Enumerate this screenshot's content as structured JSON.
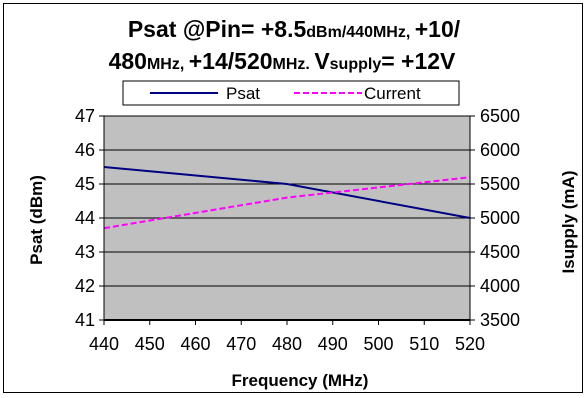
{
  "chart_data": {
    "type": "line",
    "title": {
      "line1": [
        {
          "t": "Psat @Pin= ",
          "size": "big"
        },
        {
          "t": "+8.5",
          "size": "big"
        },
        {
          "t": "dBm/440MHz, ",
          "size": "small"
        },
        {
          "t": "+10/",
          "size": "big"
        }
      ],
      "line2": [
        {
          "t": "480",
          "size": "big"
        },
        {
          "t": "MHz, ",
          "size": "small"
        },
        {
          "t": "+14/520",
          "size": "big"
        },
        {
          "t": "MHz.  ",
          "size": "small"
        },
        {
          "t": "V",
          "size": "big"
        },
        {
          "t": "supply",
          "size": "small"
        },
        {
          "t": "= +12V",
          "size": "big"
        }
      ]
    },
    "xlabel": "Frequency  (MHz)",
    "ylabel_left": "Psat (dBm)",
    "ylabel_right": "Isupply (mA)",
    "x_ticks": [
      "440",
      "450",
      "460",
      "470",
      "480",
      "490",
      "500",
      "510",
      "520"
    ],
    "y_left_ticks": [
      "41",
      "42",
      "43",
      "44",
      "45",
      "46",
      "47"
    ],
    "y_right_ticks": [
      "3500",
      "4000",
      "4500",
      "5000",
      "5500",
      "6000",
      "6500"
    ],
    "xlim": [
      440,
      520
    ],
    "ylim_left": [
      41,
      47
    ],
    "ylim_right": [
      3500,
      6500
    ],
    "grid": "horizontal",
    "plot_background": "#c0c0c0",
    "legend_position": "top-center",
    "series": [
      {
        "name": "Psat",
        "axis": "left",
        "color": "#000080",
        "style": "solid",
        "x": [
          440,
          480,
          520
        ],
        "y": [
          45.5,
          45.0,
          44.0
        ]
      },
      {
        "name": "Current",
        "axis": "right",
        "color": "#ff00ff",
        "style": "dashed",
        "x": [
          440,
          480,
          520
        ],
        "y": [
          4850,
          5300,
          5600
        ]
      }
    ]
  }
}
